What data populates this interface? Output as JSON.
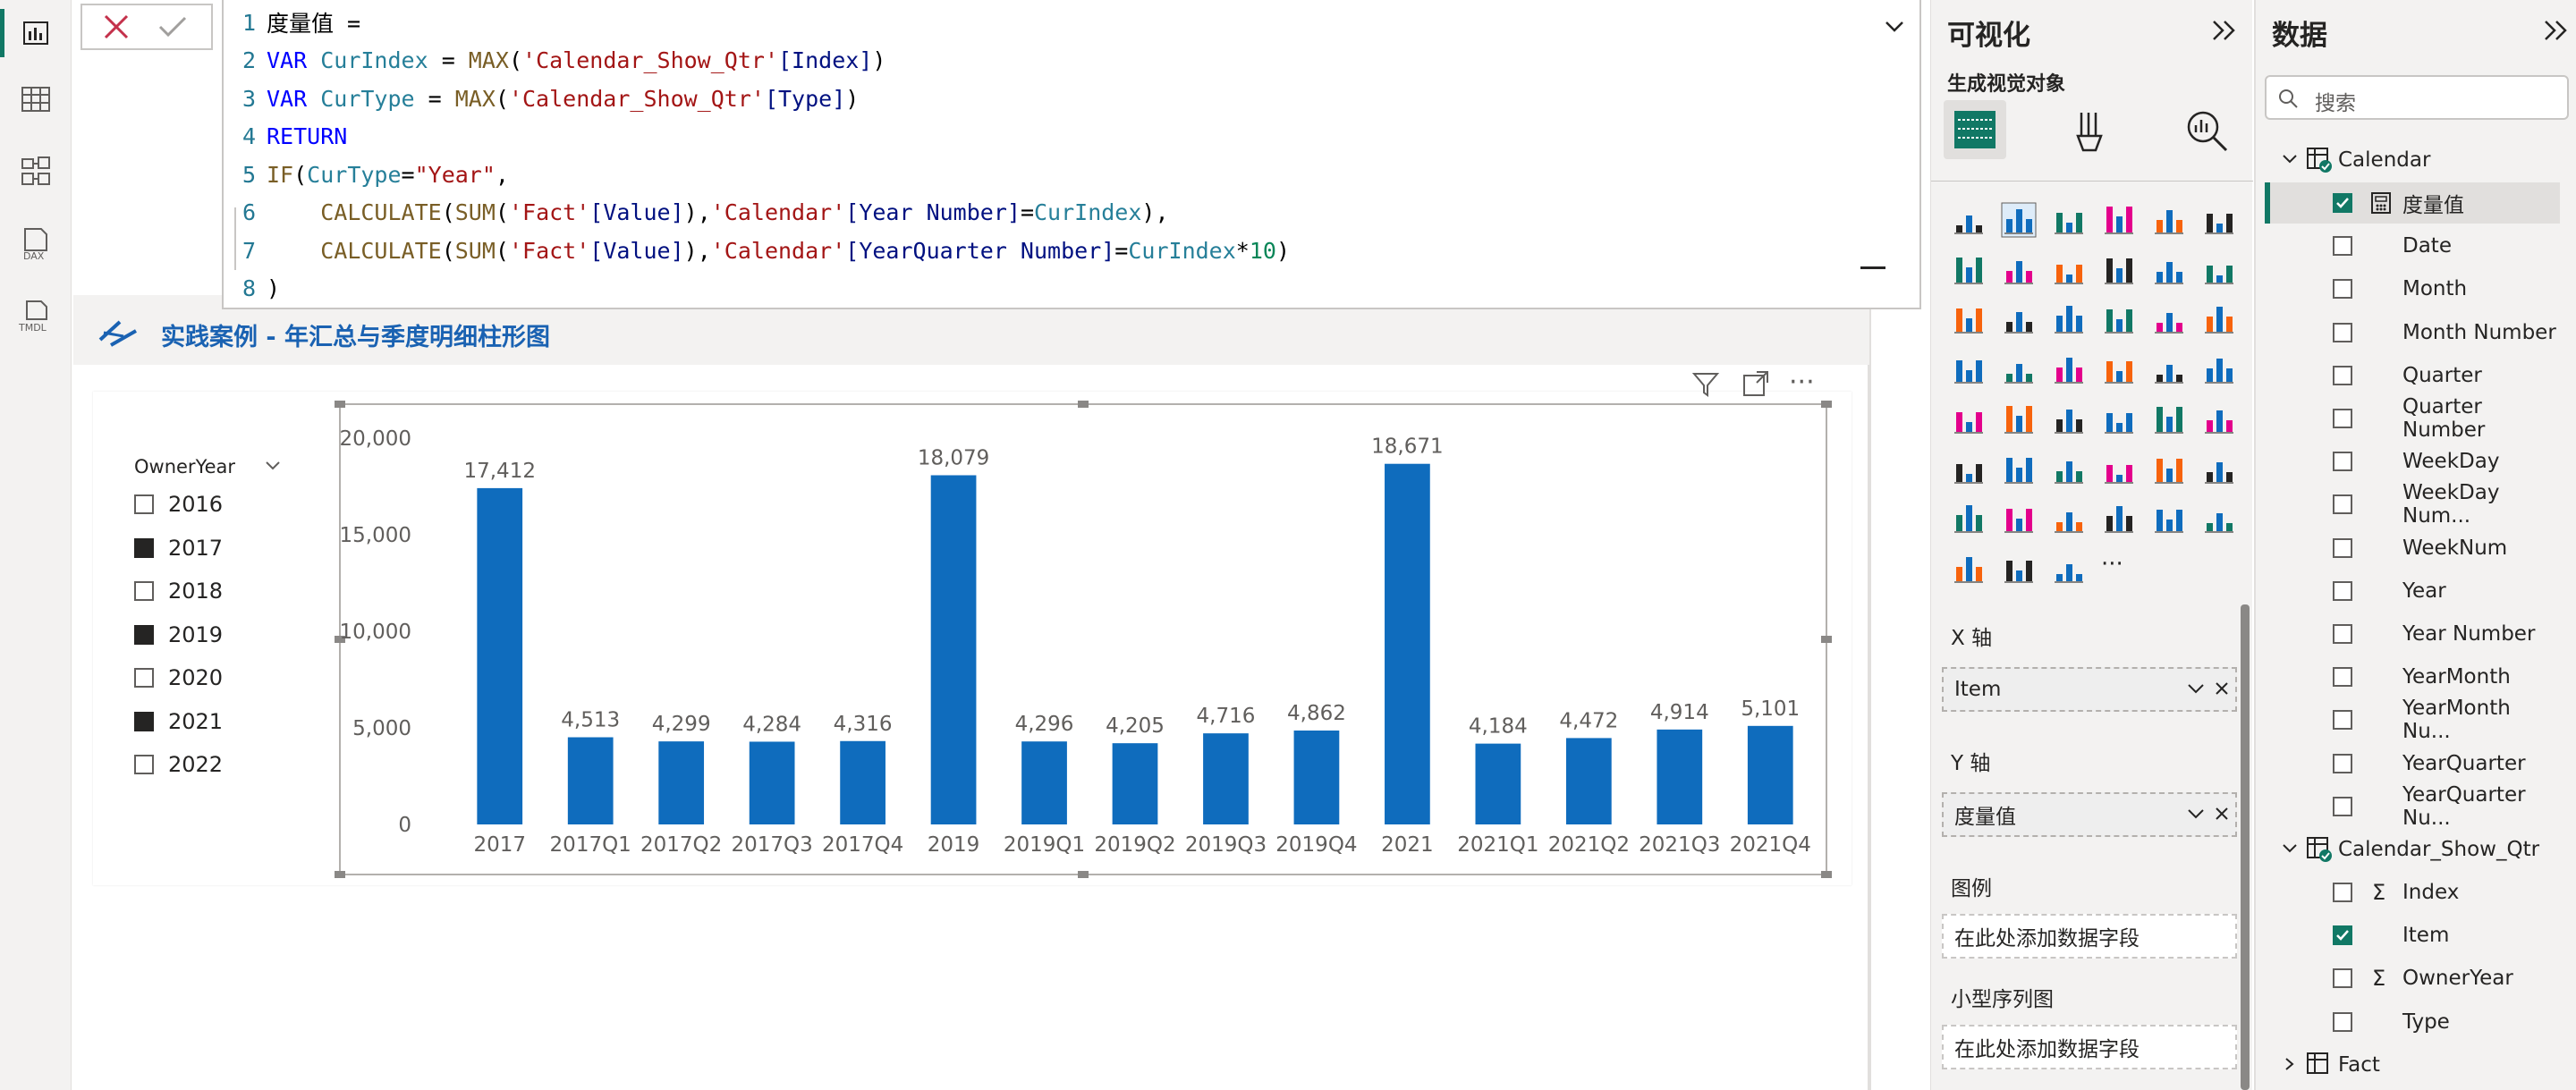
{
  "dax": {
    "lines": [
      {
        "n": "1",
        "parts": [
          [
            "plain",
            "度量值 ="
          ]
        ]
      },
      {
        "n": "2",
        "parts": [
          [
            "kw",
            "VAR "
          ],
          [
            "var",
            "CurIndex"
          ],
          [
            "plain",
            " = "
          ],
          [
            "fn",
            "MAX"
          ],
          [
            "plain",
            "("
          ],
          [
            "str",
            "'Calendar_Show_Qtr'"
          ],
          [
            "col",
            "[Index]"
          ],
          [
            "plain",
            ")"
          ]
        ]
      },
      {
        "n": "3",
        "parts": [
          [
            "kw",
            "VAR "
          ],
          [
            "var",
            "CurType"
          ],
          [
            "plain",
            " = "
          ],
          [
            "fn",
            "MAX"
          ],
          [
            "plain",
            "("
          ],
          [
            "str",
            "'Calendar_Show_Qtr'"
          ],
          [
            "col",
            "[Type]"
          ],
          [
            "plain",
            ")"
          ]
        ]
      },
      {
        "n": "4",
        "parts": [
          [
            "kw",
            "RETURN"
          ]
        ]
      },
      {
        "n": "5",
        "parts": [
          [
            "fn",
            "IF"
          ],
          [
            "plain",
            "("
          ],
          [
            "var",
            "CurType"
          ],
          [
            "plain",
            "="
          ],
          [
            "str",
            "\"Year\""
          ],
          [
            "plain",
            ","
          ]
        ]
      },
      {
        "n": "6",
        "parts": [
          [
            "plain",
            "    "
          ],
          [
            "fn",
            "CALCULATE"
          ],
          [
            "plain",
            "("
          ],
          [
            "fn",
            "SUM"
          ],
          [
            "plain",
            "("
          ],
          [
            "str",
            "'Fact'"
          ],
          [
            "col",
            "[Value]"
          ],
          [
            "plain",
            "),"
          ],
          [
            "str",
            "'Calendar'"
          ],
          [
            "col",
            "[Year Number]"
          ],
          [
            "plain",
            "="
          ],
          [
            "var",
            "CurIndex"
          ],
          [
            "plain",
            "),"
          ]
        ]
      },
      {
        "n": "7",
        "parts": [
          [
            "plain",
            "    "
          ],
          [
            "fn",
            "CALCULATE"
          ],
          [
            "plain",
            "("
          ],
          [
            "fn",
            "SUM"
          ],
          [
            "plain",
            "("
          ],
          [
            "str",
            "'Fact'"
          ],
          [
            "col",
            "[Value]"
          ],
          [
            "plain",
            "),"
          ],
          [
            "str",
            "'Calendar'"
          ],
          [
            "col",
            "[YearQuarter Number]"
          ],
          [
            "plain",
            "="
          ],
          [
            "var",
            "CurIndex"
          ],
          [
            "plain",
            "*"
          ],
          [
            "num",
            "10"
          ],
          [
            "plain",
            ")"
          ]
        ]
      },
      {
        "n": "8",
        "parts": [
          [
            "plain",
            ")"
          ]
        ]
      }
    ]
  },
  "visual": {
    "title": "实践案例 - 年汇总与季度明细柱形图"
  },
  "slicer": {
    "title": "OwnerYear",
    "items": [
      {
        "label": "2016",
        "checked": false
      },
      {
        "label": "2017",
        "checked": true
      },
      {
        "label": "2018",
        "checked": false
      },
      {
        "label": "2019",
        "checked": true
      },
      {
        "label": "2020",
        "checked": false
      },
      {
        "label": "2021",
        "checked": true
      },
      {
        "label": "2022",
        "checked": false
      }
    ]
  },
  "chart_data": {
    "type": "bar",
    "categories": [
      "2017",
      "2017Q1",
      "2017Q2",
      "2017Q3",
      "2017Q4",
      "2019",
      "2019Q1",
      "2019Q2",
      "2019Q3",
      "2019Q4",
      "2021",
      "2021Q1",
      "2021Q2",
      "2021Q3",
      "2021Q4"
    ],
    "values": [
      17412,
      4513,
      4299,
      4284,
      4316,
      18079,
      4296,
      4205,
      4716,
      4862,
      18671,
      4184,
      4472,
      4914,
      5101
    ],
    "data_labels": [
      "17,412",
      "4,513",
      "4,299",
      "4,284",
      "4,316",
      "18,079",
      "4,296",
      "4,205",
      "4,716",
      "4,862",
      "18,671",
      "4,184",
      "4,472",
      "4,914",
      "5,101"
    ],
    "yticks": [
      "0",
      "5,000",
      "10,000",
      "15,000",
      "20,000"
    ],
    "ylim": [
      0,
      20000
    ],
    "color": "#0f6cbd"
  },
  "vis_pane": {
    "title": "可视化",
    "subtitle": "生成视觉对象",
    "x_axis_label": "X 轴",
    "x_axis_field": "Item",
    "y_axis_label": "Y 轴",
    "y_axis_field": "度量值",
    "legend_label": "图例",
    "legend_placeholder": "在此处添加数据字段",
    "small_multiples_label": "小型序列图",
    "small_multiples_placeholder": "在此处添加数据字段"
  },
  "data_pane": {
    "title": "数据",
    "search_placeholder": "搜索",
    "tables": [
      {
        "name": "Calendar",
        "fields": [
          {
            "label": "度量值",
            "checked": true
          },
          {
            "label": "Date",
            "checked": false
          },
          {
            "label": "Month",
            "checked": false
          },
          {
            "label": "Month Number",
            "checked": false
          },
          {
            "label": "Quarter",
            "checked": false
          },
          {
            "label": "Quarter Number",
            "checked": false
          },
          {
            "label": "WeekDay",
            "checked": false
          },
          {
            "label": "WeekDay Num...",
            "checked": false
          },
          {
            "label": "WeekNum",
            "checked": false
          },
          {
            "label": "Year",
            "checked": false
          },
          {
            "label": "Year Number",
            "checked": false
          },
          {
            "label": "YearMonth",
            "checked": false
          },
          {
            "label": "YearMonth Nu...",
            "checked": false
          },
          {
            "label": "YearQuarter",
            "checked": false
          },
          {
            "label": "YearQuarter Nu...",
            "checked": false
          }
        ]
      },
      {
        "name": "Calendar_Show_Qtr",
        "fields": [
          {
            "label": "Index",
            "checked": false
          },
          {
            "label": "Item",
            "checked": true
          },
          {
            "label": "OwnerYear",
            "checked": false
          },
          {
            "label": "Type",
            "checked": false
          }
        ]
      },
      {
        "name": "Fact",
        "fields": []
      }
    ]
  }
}
